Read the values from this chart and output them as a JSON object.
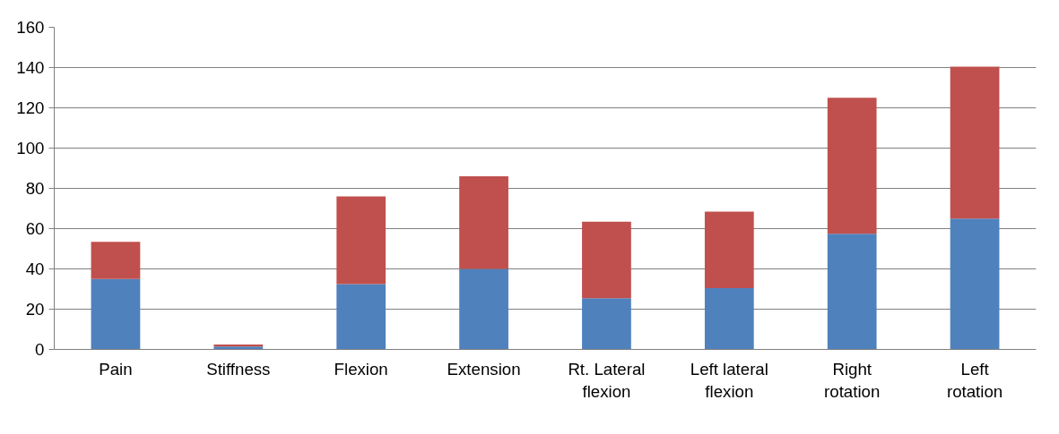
{
  "chart_data": {
    "type": "bar",
    "stacked": true,
    "categories": [
      "Pain",
      "Stiffness",
      "Flexion",
      "Extension",
      "Rt. Lateral flexion",
      "Left lateral flexion",
      "Right rotation",
      "Left rotation"
    ],
    "series": [
      {
        "color": "#4f81bd",
        "values": [
          35,
          1.5,
          32.5,
          40,
          25.5,
          30.5,
          57.5,
          65
        ]
      },
      {
        "color": "#c0504d",
        "values": [
          18.5,
          1,
          43.5,
          46,
          38,
          38,
          67.5,
          75.5
        ]
      }
    ],
    "ylim": [
      0,
      160
    ],
    "yticks": [
      0,
      20,
      40,
      60,
      80,
      100,
      120,
      140,
      160
    ],
    "grid": "y"
  }
}
